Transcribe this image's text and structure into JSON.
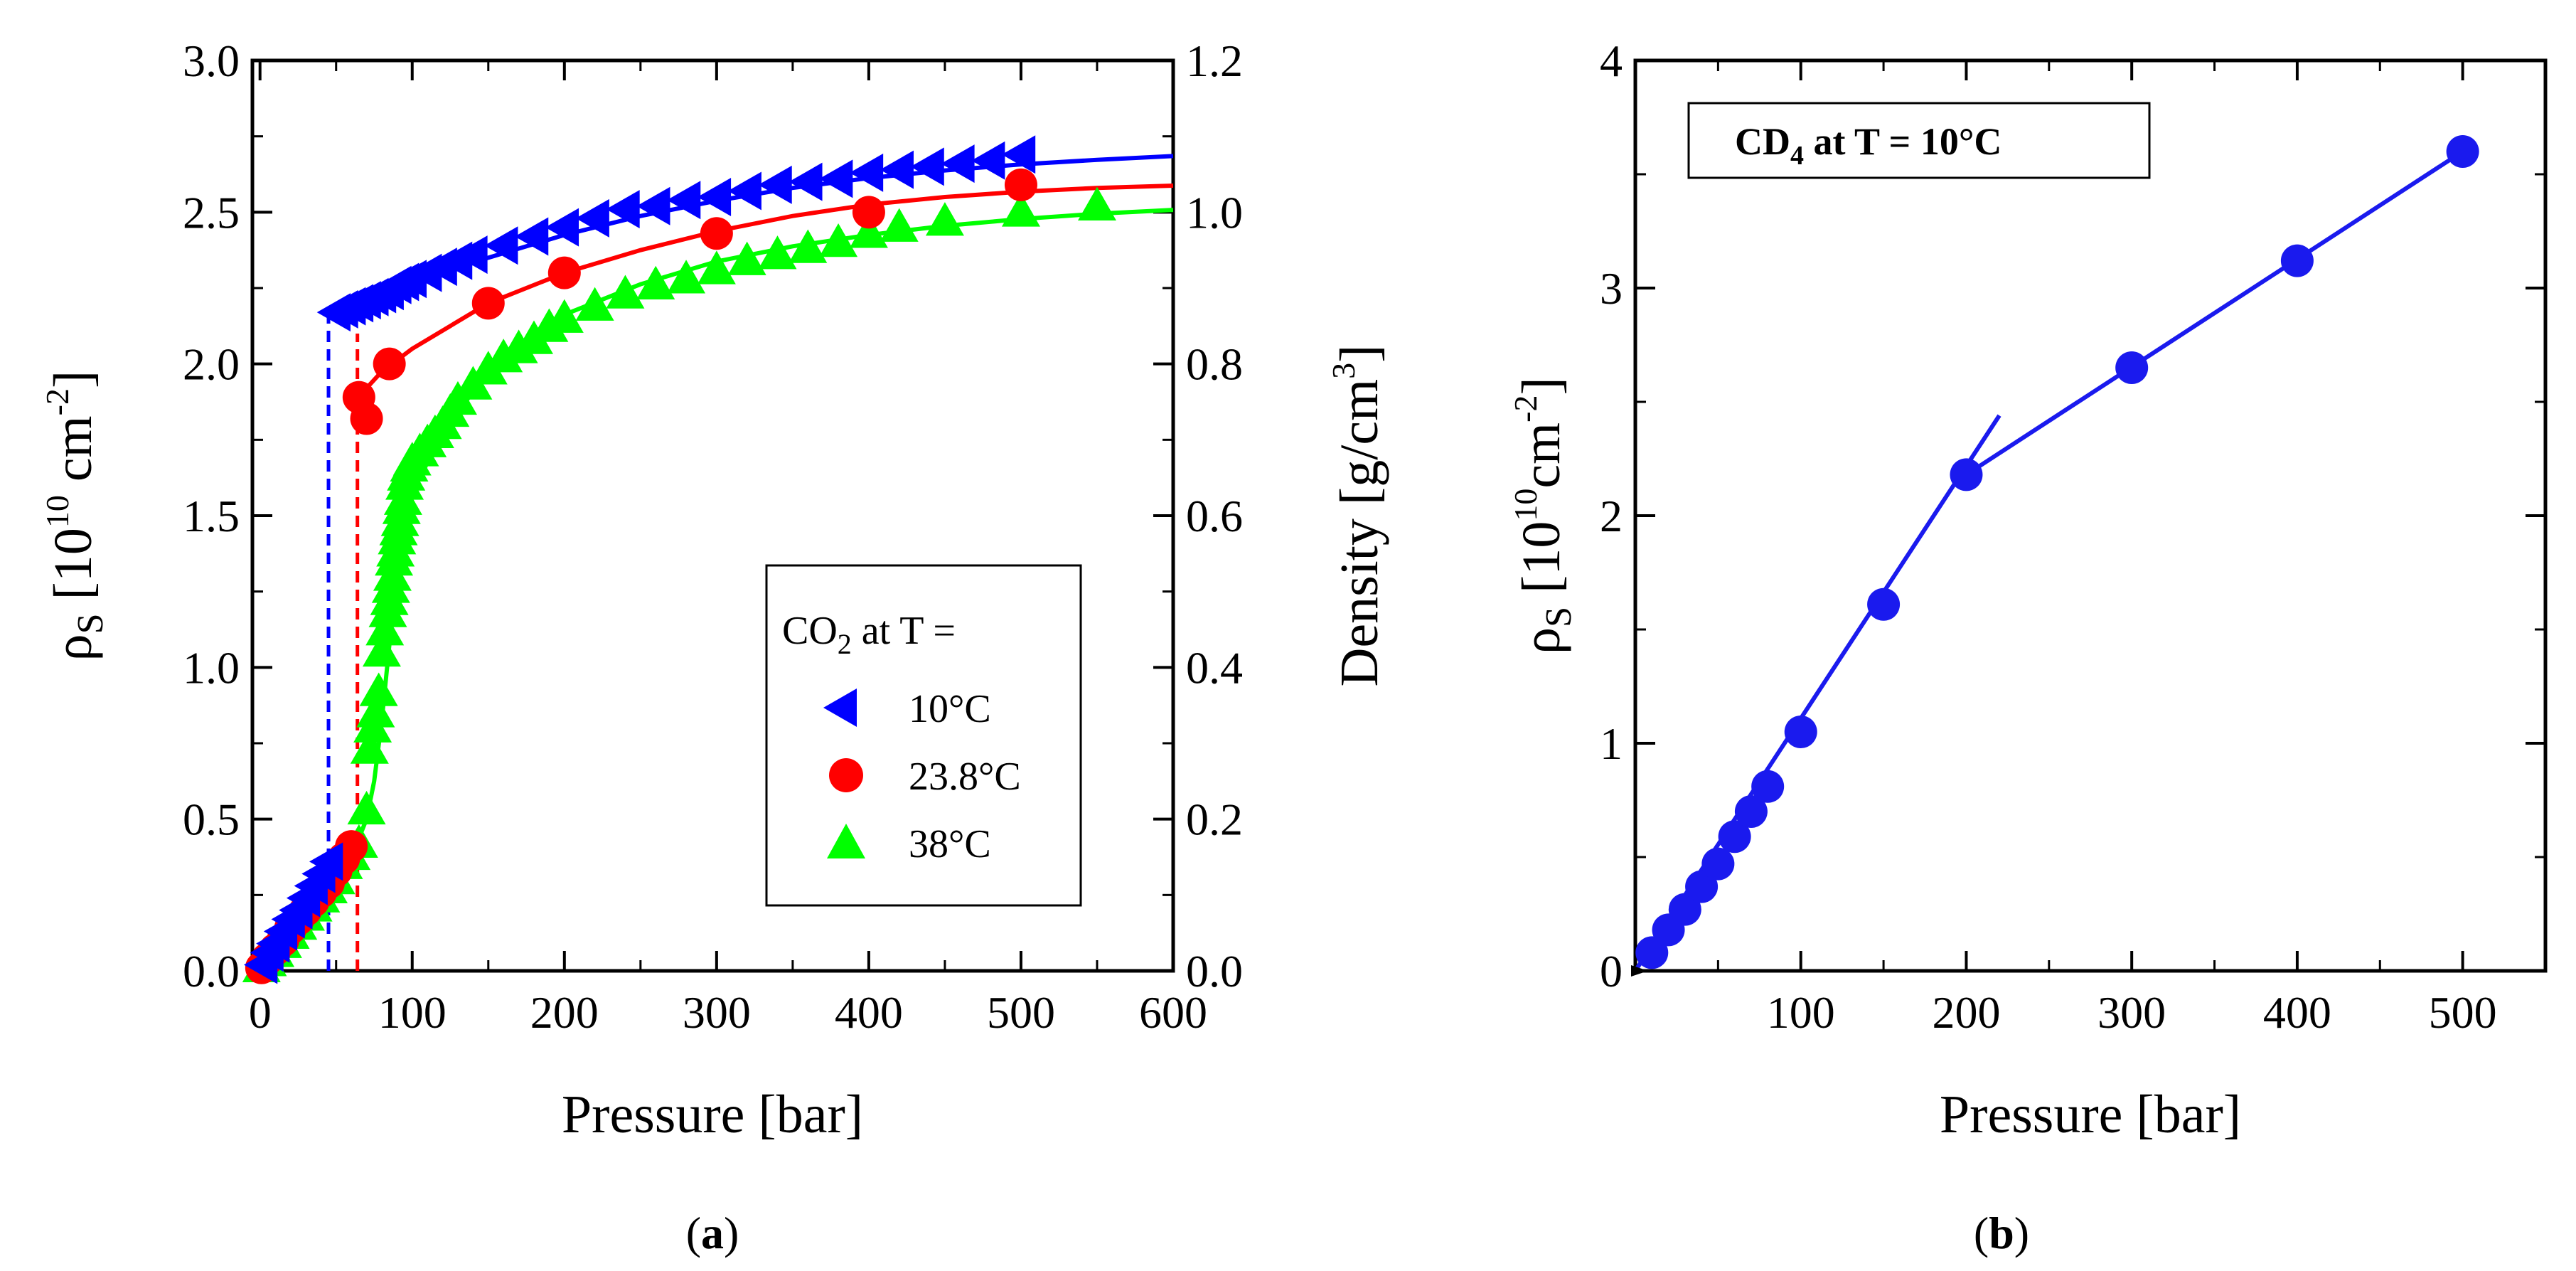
{
  "chart_data": [
    {
      "panel": "a",
      "type": "scatter",
      "panel_label": "a",
      "xlabel": "Pressure [bar]",
      "ylabel": "ρS [1010 cm-2]",
      "ylabel_parts": {
        "rho": "ρ",
        "sub": "S",
        "pre": " [10",
        "exp": "10",
        "mid": " cm",
        "exp2": "-2",
        "post": "]"
      },
      "y2label": "Density [g/cm3]",
      "y2label_parts": {
        "pre": "Density [g/cm",
        "exp": "3",
        "post": "]"
      },
      "xlim": [
        -5,
        600
      ],
      "ylim": [
        0,
        3.0
      ],
      "y2lim": [
        0,
        1.2
      ],
      "xticks": [
        "0",
        "100",
        "200",
        "300",
        "400",
        "500",
        "600"
      ],
      "xtick_values": [
        0,
        100,
        200,
        300,
        400,
        500,
        600
      ],
      "yticks": [
        "0.0",
        "0.5",
        "1.0",
        "1.5",
        "2.0",
        "2.5",
        "3.0"
      ],
      "ytick_values": [
        0,
        0.5,
        1.0,
        1.5,
        2.0,
        2.5,
        3.0
      ],
      "y2ticks": [
        "0.0",
        "0.2",
        "0.4",
        "0.6",
        "0.8",
        "1.0",
        "1.2"
      ],
      "y2tick_values": [
        0,
        0.2,
        0.4,
        0.6,
        0.8,
        1.0,
        1.2
      ],
      "legend": {
        "title": "CO2 at T =",
        "title_parts": {
          "pre": "CO",
          "sub": "2",
          "post": " at T ="
        },
        "placement": "center-right",
        "entries": [
          "10°C",
          "23.8°C",
          "38°C"
        ]
      },
      "series": [
        {
          "name": "10°C",
          "color": "#0000ff",
          "marker": "triangle-left",
          "x": [
            2,
            6,
            10,
            15,
            20,
            25,
            30,
            35,
            40,
            45,
            50,
            55,
            60,
            65,
            70,
            75,
            80,
            85,
            90,
            95,
            100,
            110,
            120,
            130,
            140,
            160,
            180,
            200,
            220,
            240,
            260,
            280,
            300,
            320,
            340,
            360,
            380,
            400,
            420,
            440,
            460,
            480,
            500
          ],
          "y": [
            0.02,
            0.06,
            0.09,
            0.13,
            0.17,
            0.2,
            0.24,
            0.28,
            0.32,
            0.36,
            2.17,
            2.18,
            2.19,
            2.2,
            2.21,
            2.22,
            2.23,
            2.24,
            2.26,
            2.27,
            2.28,
            2.3,
            2.32,
            2.34,
            2.36,
            2.39,
            2.42,
            2.45,
            2.48,
            2.51,
            2.52,
            2.54,
            2.55,
            2.57,
            2.59,
            2.6,
            2.61,
            2.63,
            2.64,
            2.65,
            2.66,
            2.67,
            2.69
          ]
        },
        {
          "name": "23.8°C",
          "color": "#ff0000",
          "marker": "circle",
          "x": [
            1,
            5,
            10,
            15,
            20,
            25,
            30,
            35,
            40,
            45,
            50,
            55,
            60,
            65,
            70,
            85,
            150,
            200,
            300,
            400,
            500
          ],
          "y": [
            0.01,
            0.04,
            0.07,
            0.1,
            0.14,
            0.17,
            0.2,
            0.23,
            0.26,
            0.29,
            0.33,
            0.37,
            0.41,
            1.89,
            1.82,
            2.0,
            2.2,
            2.3,
            2.43,
            2.5,
            2.59
          ]
        },
        {
          "name": "38°C",
          "color": "#00ff00",
          "marker": "triangle-up",
          "x": [
            1,
            5,
            10,
            15,
            20,
            25,
            30,
            35,
            40,
            45,
            50,
            55,
            60,
            65,
            70,
            72,
            74,
            76,
            78,
            80,
            82,
            84,
            85,
            86,
            87,
            88,
            89,
            90,
            91,
            92,
            93,
            94,
            95,
            96,
            98,
            100,
            105,
            110,
            115,
            120,
            125,
            130,
            140,
            150,
            160,
            170,
            180,
            190,
            200,
            220,
            240,
            260,
            280,
            300,
            320,
            340,
            360,
            380,
            400,
            420,
            450,
            500,
            550
          ],
          "y": [
            0.01,
            0.03,
            0.06,
            0.09,
            0.12,
            0.15,
            0.18,
            0.21,
            0.24,
            0.27,
            0.3,
            0.35,
            0.38,
            0.42,
            0.53,
            0.73,
            0.8,
            0.85,
            0.92,
            1.05,
            1.12,
            1.18,
            1.22,
            1.26,
            1.3,
            1.35,
            1.38,
            1.42,
            1.45,
            1.48,
            1.52,
            1.55,
            1.6,
            1.63,
            1.66,
            1.68,
            1.71,
            1.74,
            1.77,
            1.8,
            1.84,
            1.88,
            1.93,
            1.98,
            2.02,
            2.05,
            2.08,
            2.12,
            2.15,
            2.19,
            2.23,
            2.26,
            2.28,
            2.31,
            2.34,
            2.36,
            2.38,
            2.4,
            2.43,
            2.45,
            2.47,
            2.5,
            2.52
          ]
        }
      ],
      "density_curves": [
        {
          "name": "10°C",
          "color": "#0000ff",
          "style": "solid",
          "axis": "right",
          "x": [
            45,
            60,
            80,
            100,
            150,
            200,
            250,
            300,
            350,
            400,
            450,
            500,
            550,
            600
          ],
          "y": [
            0.87,
            0.88,
            0.893,
            0.905,
            0.94,
            0.97,
            0.995,
            1.015,
            1.032,
            1.045,
            1.055,
            1.063,
            1.069,
            1.074
          ]
        },
        {
          "name": "10°C gas",
          "color": "#0000ff",
          "style": "dotted",
          "axis": "right",
          "x": [
            0,
            20,
            45
          ],
          "y": [
            0.0,
            0.05,
            0.135
          ]
        },
        {
          "name": "23.8°C",
          "color": "#ff0000",
          "style": "solid",
          "axis": "right",
          "x": [
            64,
            80,
            100,
            150,
            200,
            250,
            300,
            350,
            400,
            450,
            500,
            550,
            600
          ],
          "y": [
            0.755,
            0.79,
            0.82,
            0.88,
            0.92,
            0.95,
            0.975,
            0.995,
            1.01,
            1.02,
            1.027,
            1.032,
            1.035
          ]
        },
        {
          "name": "23.8°C gas",
          "color": "#ff0000",
          "style": "dotted",
          "axis": "right",
          "x": [
            0,
            20,
            40,
            64
          ],
          "y": [
            0.0,
            0.04,
            0.09,
            0.16
          ]
        },
        {
          "name": "38°C",
          "color": "#00ff00",
          "style": "solid",
          "axis": "right",
          "x": [
            0,
            30,
            60,
            70,
            75,
            80,
            85,
            90,
            95,
            100,
            120,
            150,
            200,
            250,
            300,
            350,
            400,
            450,
            500,
            550,
            600
          ],
          "y": [
            0.0,
            0.07,
            0.15,
            0.2,
            0.25,
            0.33,
            0.43,
            0.52,
            0.59,
            0.63,
            0.71,
            0.79,
            0.865,
            0.905,
            0.935,
            0.955,
            0.97,
            0.982,
            0.991,
            0.998,
            1.003
          ]
        }
      ],
      "vertical_lines": [
        {
          "color": "#0000ff",
          "x": 45,
          "y_from": 0.0,
          "y_to": 2.17
        },
        {
          "color": "#ff0000",
          "x": 64,
          "y_from": 0.0,
          "y_to": 2.1
        }
      ]
    },
    {
      "panel": "b",
      "type": "scatter",
      "panel_label": "b",
      "xlabel": "Pressure [bar]",
      "ylabel": "ρS [1010cm-2]",
      "ylabel_parts": {
        "rho": "ρ",
        "sub": "S",
        "pre": " [10",
        "exp": "10",
        "mid": "cm",
        "exp2": "-2",
        "post": "]"
      },
      "xlim": [
        0,
        550
      ],
      "ylim": [
        0,
        4
      ],
      "xticks": [
        "100",
        "200",
        "300",
        "400",
        "500"
      ],
      "xtick_values": [
        100,
        200,
        300,
        400,
        500
      ],
      "yticks": [
        "0",
        "1",
        "2",
        "3",
        "4"
      ],
      "ytick_values": [
        0,
        1,
        2,
        3,
        4
      ],
      "annotation": "CD4 at T = 10°C",
      "annotation_parts": {
        "pre": "CD",
        "sub": "4",
        "post": " at T = 10°C"
      },
      "series": [
        {
          "name": "CD4 at T = 10°C",
          "color": "#1a1aee",
          "marker": "circle",
          "x": [
            10,
            20,
            30,
            40,
            50,
            60,
            70,
            80,
            100,
            150,
            200,
            300,
            400,
            500
          ],
          "y": [
            0.08,
            0.18,
            0.27,
            0.37,
            0.47,
            0.59,
            0.7,
            0.81,
            1.05,
            1.61,
            2.18,
            2.65,
            3.12,
            3.6
          ]
        }
      ],
      "fit_lines": [
        {
          "color": "#1a1aee",
          "x": [
            0,
            220
          ],
          "y": [
            0.0,
            2.44
          ]
        },
        {
          "color": "#1a1aee",
          "x": [
            200,
            500
          ],
          "y": [
            2.18,
            3.6
          ]
        }
      ]
    }
  ]
}
